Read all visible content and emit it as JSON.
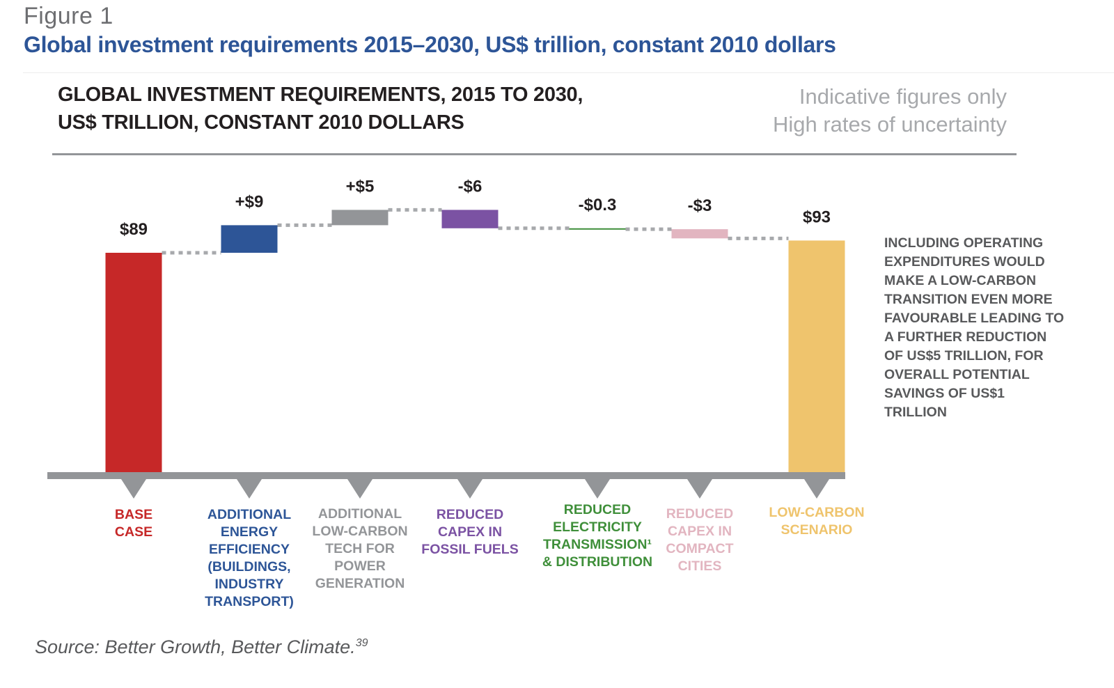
{
  "figure": {
    "label": "Figure 1",
    "title": "Global investment requirements 2015–2030, US$ trillion, constant 2010 dollars"
  },
  "chart_header": {
    "title_line1": "GLOBAL INVESTMENT REQUIREMENTS, 2015 TO 2030,",
    "title_line2": "US$ TRILLION, CONSTANT 2010 DOLLARS",
    "disclaimer_line1": "Indicative figures only",
    "disclaimer_line2": "High rates of uncertainty"
  },
  "note": "INCLUDING OPERATING EXPENDITURES WOULD MAKE A LOW-CARBON TRANSITION EVEN MORE FAVOURABLE LEADING TO A FURTHER REDUCTION OF US$5 TRILLION, FOR OVERALL POTENTIAL SAVINGS OF US$1 TRILLION",
  "source": {
    "text": "Source: Better Growth, Better Climate.",
    "footnote": "39"
  },
  "chart_data": {
    "type": "waterfall",
    "title": "GLOBAL INVESTMENT REQUIREMENTS, 2015 TO 2030, US$ TRILLION, CONSTANT 2010 DOLLARS",
    "unit": "US$ trillion",
    "xlabel": "",
    "ylabel": "",
    "grid": false,
    "legend": "none",
    "categories": [
      "BASE CASE",
      "ADDITIONAL ENERGY EFFICIENCY (BUILDINGS, INDUSTRY TRANSPORT)",
      "ADDITIONAL LOW-CARBON TECH FOR POWER GENERATION",
      "REDUCED CAPEX IN FOSSIL FUELS",
      "REDUCED ELECTRICITY TRANSMISSION¹ & DISTRIBUTION",
      "REDUCED CAPEX IN COMPACT CITIES",
      "LOW-CARBON SCENARIO"
    ],
    "bars": [
      {
        "name": "base-case",
        "kind": "total",
        "value": 89,
        "label": "$89",
        "color": "#c62828",
        "category_lines": [
          "BASE",
          "CASE"
        ]
      },
      {
        "name": "energy-efficiency",
        "kind": "delta",
        "value": 9,
        "label": "+$9",
        "color": "#2d5597",
        "category_lines": [
          "ADDITIONAL",
          "ENERGY",
          "EFFICIENCY",
          "(BUILDINGS,",
          "INDUSTRY",
          "TRANSPORT)"
        ]
      },
      {
        "name": "low-carbon-tech",
        "kind": "delta",
        "value": 5,
        "label": "+$5",
        "color": "#939598",
        "category_lines": [
          "ADDITIONAL",
          "LOW-CARBON",
          "TECH FOR",
          "POWER",
          "GENERATION"
        ]
      },
      {
        "name": "fossil-fuels",
        "kind": "delta",
        "value": -6,
        "label": "-$6",
        "color": "#7b52a3",
        "category_lines": [
          "REDUCED",
          "CAPEX IN",
          "FOSSIL FUELS"
        ]
      },
      {
        "name": "transmission",
        "kind": "delta",
        "value": -0.3,
        "label": "-$0.3",
        "color": "#3f8f3a",
        "category_lines": [
          "REDUCED",
          "ELECTRICITY",
          "TRANSMISSION¹",
          "& DISTRIBUTION"
        ]
      },
      {
        "name": "compact-cities",
        "kind": "delta",
        "value": -3,
        "label": "-$3",
        "color": "#e2b5c0",
        "category_lines": [
          "REDUCED",
          "CAPEX IN",
          "COMPACT",
          "CITIES"
        ]
      },
      {
        "name": "low-carbon-scenario",
        "kind": "total",
        "value": 93,
        "label": "$93",
        "color": "#efc46d",
        "category_lines": [
          "LOW-CARBON",
          "SCENARIO"
        ]
      }
    ],
    "axis_color": "#939598",
    "connector_color": "#a7a9ac"
  }
}
